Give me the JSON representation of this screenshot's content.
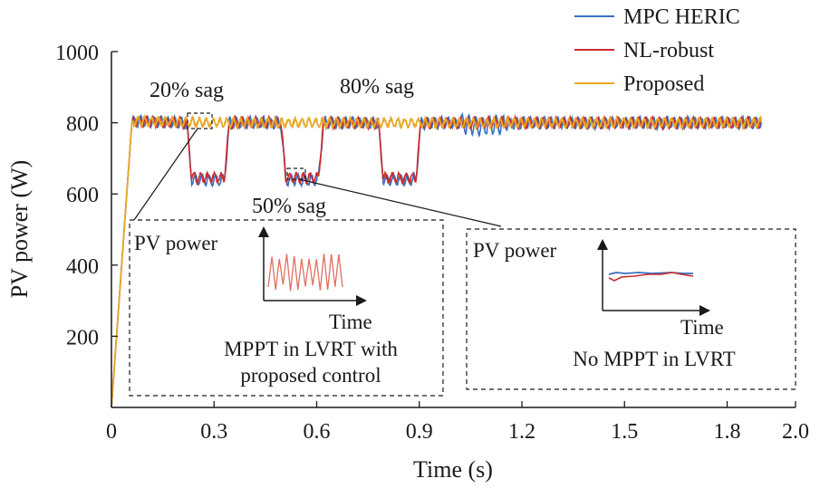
{
  "chart_data": {
    "type": "line",
    "xlabel": "Time (s)",
    "ylabel": "PV power (W)",
    "xlim": [
      0,
      2.0
    ],
    "ylim": [
      0,
      1000
    ],
    "xticks": [
      "0",
      "0.3",
      "0.6",
      "0.9",
      "1.2",
      "1.5",
      "1.8",
      "2.0"
    ],
    "xtick_values": [
      0,
      0.3,
      0.6,
      0.9,
      1.2,
      1.5,
      1.8,
      2.0
    ],
    "yticks": [
      "200",
      "400",
      "600",
      "800",
      "1000"
    ],
    "ytick_values": [
      200,
      400,
      600,
      800,
      1000
    ],
    "grid": false,
    "legend_position": "top-right",
    "series": [
      {
        "name": "MPC HERIC",
        "color": "#3a6fc4",
        "x": [
          0,
          0.06,
          0.22,
          0.235,
          0.33,
          0.345,
          0.495,
          0.51,
          0.605,
          0.62,
          0.78,
          0.795,
          0.89,
          0.905,
          1.0,
          1.08,
          1.2,
          1.5,
          1.9
        ],
        "y": [
          0,
          805,
          800,
          640,
          640,
          800,
          800,
          640,
          640,
          800,
          800,
          640,
          640,
          800,
          800,
          790,
          800,
          800,
          800
        ]
      },
      {
        "name": "NL-robust",
        "color": "#cc2b2b",
        "x": [
          0,
          0.06,
          0.22,
          0.235,
          0.33,
          0.345,
          0.495,
          0.51,
          0.605,
          0.62,
          0.78,
          0.795,
          0.89,
          0.905,
          1.9
        ],
        "y": [
          0,
          805,
          800,
          645,
          645,
          800,
          800,
          645,
          645,
          800,
          800,
          645,
          645,
          800,
          800
        ]
      },
      {
        "name": "Proposed",
        "color": "#e8a92a",
        "x": [
          0,
          0.06,
          0.3,
          0.6,
          0.9,
          1.2,
          1.5,
          1.9
        ],
        "y": [
          0,
          805,
          800,
          800,
          800,
          800,
          800,
          800
        ]
      }
    ],
    "annotations": [
      {
        "text": "20% sag",
        "x": 0.26,
        "y": 905
      },
      {
        "text": "50% sag",
        "x": 0.63,
        "y": 560
      },
      {
        "text": "80% sag",
        "x": 0.88,
        "y": 915
      }
    ],
    "insets": [
      {
        "ylabel": "PV power",
        "xlabel": "Time",
        "caption": [
          "MPPT in LVRT with",
          "proposed control"
        ],
        "zoom_time_range": [
          0.23,
          0.285
        ],
        "zoom_power_level": 800
      },
      {
        "ylabel": "PV power",
        "xlabel": "Time",
        "caption": [
          "No MPPT in LVRT"
        ],
        "zoom_time_range": [
          0.55,
          0.58
        ],
        "zoom_power_level": 645
      }
    ]
  }
}
